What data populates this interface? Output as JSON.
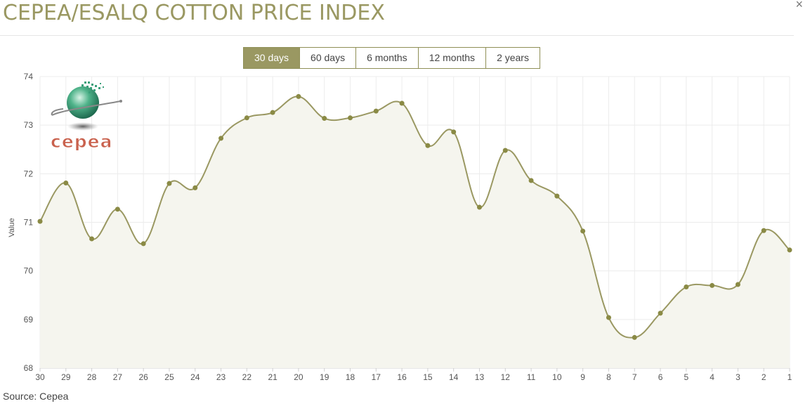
{
  "header": {
    "title": "CEPEA/ESALQ COTTON PRICE INDEX",
    "close_label": "×"
  },
  "tabs": [
    {
      "label": "30 days",
      "active": true
    },
    {
      "label": "60 days",
      "active": false
    },
    {
      "label": "6 months",
      "active": false
    },
    {
      "label": "12 months",
      "active": false
    },
    {
      "label": "2 years",
      "active": false
    }
  ],
  "logo": {
    "text": "cepea"
  },
  "source": "Source: Cepea",
  "colors": {
    "accent": "#9a9862",
    "line": "#9a9862",
    "point": "#8a8a45",
    "fill": "#f5f5ee",
    "grid": "#ececec",
    "logo_red": "#c9614d",
    "logo_green": "#3fa07a"
  },
  "chart_data": {
    "type": "line",
    "title": "",
    "xlabel": "",
    "ylabel": "Value",
    "ylim": [
      68,
      74
    ],
    "yticks": [
      68,
      69,
      70,
      71,
      72,
      73,
      74
    ],
    "grid": true,
    "categories": [
      "30",
      "29",
      "28",
      "27",
      "26",
      "25",
      "24",
      "23",
      "22",
      "21",
      "20",
      "19",
      "18",
      "17",
      "16",
      "15",
      "14",
      "13",
      "12",
      "11",
      "10",
      "9",
      "8",
      "7",
      "6",
      "5",
      "4",
      "3",
      "2",
      "1"
    ],
    "series": [
      {
        "values": [
          71.02,
          71.81,
          70.66,
          71.27,
          70.56,
          71.8,
          71.71,
          72.73,
          73.15,
          73.26,
          73.59,
          73.14,
          73.15,
          73.29,
          73.45,
          72.58,
          72.86,
          71.31,
          72.48,
          71.86,
          71.54,
          70.82,
          69.04,
          68.63,
          69.13,
          69.67,
          69.7,
          69.72,
          70.83,
          70.43
        ]
      }
    ]
  }
}
